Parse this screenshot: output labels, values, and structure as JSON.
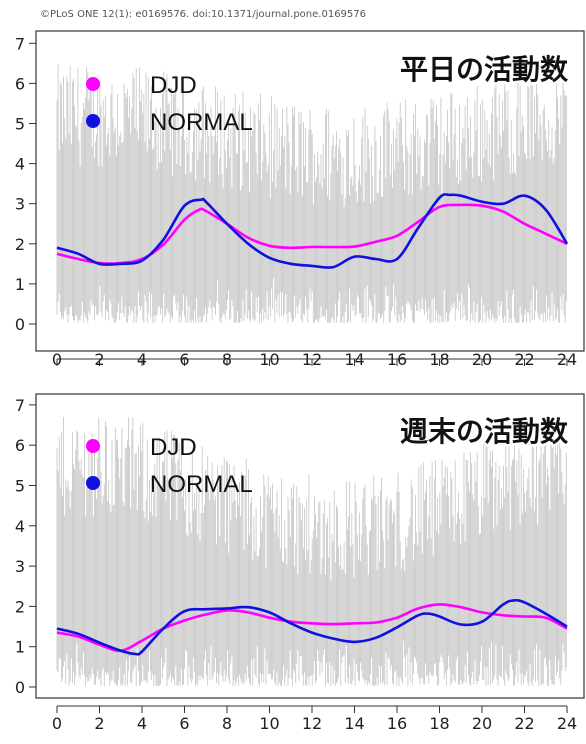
{
  "credit": "©PLoS ONE 12(1): e0169576. doi:10.1371/journal.pone.0169576",
  "colors": {
    "DJD": "#ff00ff",
    "NORMAL": "#1010e0",
    "background_traces": "#c0c0c0"
  },
  "chart_data": [
    {
      "type": "line",
      "title": "平日の活動数",
      "xlabel": "",
      "ylabel": "",
      "xlim": [
        0,
        24
      ],
      "ylim": [
        0,
        7
      ],
      "x_ticks": [
        "0",
        "2",
        "4",
        "6",
        "8",
        "10",
        "12",
        "14",
        "16",
        "18",
        "20",
        "22",
        "24"
      ],
      "y_ticks": [
        "0",
        "1",
        "2",
        "3",
        "4",
        "5",
        "6",
        "7"
      ],
      "legend": {
        "position": "top-left",
        "entries": [
          "DJD",
          "NORMAL"
        ]
      },
      "series": [
        {
          "name": "DJD",
          "x": [
            0,
            1,
            2,
            3,
            4,
            5,
            6,
            6.7,
            7,
            8,
            9,
            10,
            11,
            12,
            13,
            14,
            15,
            16,
            17,
            18,
            19,
            20,
            21,
            22,
            23,
            24
          ],
          "y": [
            1.75,
            1.62,
            1.52,
            1.52,
            1.62,
            1.98,
            2.6,
            2.85,
            2.82,
            2.5,
            2.15,
            1.95,
            1.9,
            1.92,
            1.92,
            1.93,
            2.05,
            2.2,
            2.55,
            2.92,
            2.97,
            2.95,
            2.8,
            2.5,
            2.25,
            2.0
          ]
        },
        {
          "name": "NORMAL",
          "x": [
            0,
            1,
            2,
            3,
            4,
            5,
            6,
            6.8,
            7,
            8,
            9,
            10,
            11,
            12,
            13,
            14,
            15,
            16,
            17,
            18,
            18.5,
            19,
            20,
            21,
            22,
            23,
            24
          ],
          "y": [
            1.9,
            1.75,
            1.5,
            1.5,
            1.58,
            2.1,
            2.95,
            3.1,
            3.05,
            2.5,
            2.0,
            1.65,
            1.5,
            1.45,
            1.42,
            1.68,
            1.62,
            1.62,
            2.4,
            3.15,
            3.22,
            3.2,
            3.05,
            3.0,
            3.2,
            2.85,
            2.0
          ]
        }
      ]
    },
    {
      "type": "line",
      "title": "週末の活動数",
      "xlabel": "",
      "ylabel": "",
      "xlim": [
        0,
        24
      ],
      "ylim": [
        0,
        7
      ],
      "x_ticks": [
        "0",
        "2",
        "4",
        "6",
        "8",
        "10",
        "12",
        "14",
        "16",
        "18",
        "20",
        "22",
        "24"
      ],
      "y_ticks": [
        "0",
        "1",
        "2",
        "3",
        "4",
        "5",
        "6",
        "7"
      ],
      "legend": {
        "position": "top-left",
        "entries": [
          "DJD",
          "NORMAL"
        ]
      },
      "series": [
        {
          "name": "DJD",
          "x": [
            0,
            1,
            2,
            3,
            4,
            5,
            6,
            7,
            8,
            9,
            10,
            11,
            12,
            13,
            14,
            15,
            16,
            17,
            18,
            19,
            20,
            21,
            22,
            23,
            24
          ],
          "y": [
            1.35,
            1.25,
            1.05,
            0.9,
            1.15,
            1.45,
            1.65,
            1.8,
            1.9,
            1.85,
            1.72,
            1.62,
            1.58,
            1.56,
            1.58,
            1.6,
            1.72,
            1.95,
            2.05,
            1.98,
            1.85,
            1.78,
            1.75,
            1.72,
            1.45
          ]
        },
        {
          "name": "NORMAL",
          "x": [
            0,
            1,
            2,
            3,
            3.7,
            4,
            5,
            6,
            7,
            8,
            9,
            10,
            11,
            12,
            13,
            14,
            15,
            16,
            17,
            17.5,
            18,
            19,
            20,
            21,
            21.5,
            22,
            23,
            24
          ],
          "y": [
            1.45,
            1.32,
            1.1,
            0.9,
            0.82,
            0.88,
            1.45,
            1.88,
            1.93,
            1.95,
            1.98,
            1.85,
            1.58,
            1.35,
            1.2,
            1.12,
            1.22,
            1.48,
            1.78,
            1.82,
            1.75,
            1.55,
            1.62,
            2.05,
            2.15,
            2.1,
            1.82,
            1.5
          ]
        }
      ]
    }
  ]
}
